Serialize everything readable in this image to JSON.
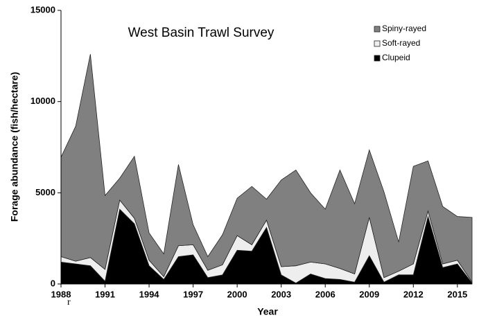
{
  "chart_data": {
    "type": "stacked-area",
    "title": "West Basin Trawl Survey",
    "x_label": "Year",
    "y_label": "Forage abundance  (fish/hectare)",
    "annotation": "r",
    "x": [
      1988,
      1989,
      1990,
      1991,
      1992,
      1993,
      1994,
      1995,
      1996,
      1997,
      1998,
      1999,
      2000,
      2001,
      2002,
      2003,
      2004,
      2005,
      2006,
      2007,
      2008,
      2009,
      2010,
      2011,
      2012,
      2013,
      2014,
      2015,
      2016
    ],
    "xlim": [
      1988,
      2016
    ],
    "xticks": [
      1988,
      1991,
      1994,
      1997,
      2000,
      2003,
      2006,
      2009,
      2012,
      2015
    ],
    "ylim": [
      0,
      15000
    ],
    "yticks": [
      0,
      5000,
      10000,
      15000
    ],
    "legend_position": "top-right",
    "series": [
      {
        "name": "Clupeid",
        "color": "#000000",
        "values": [
          1200,
          1100,
          1000,
          150,
          4100,
          3300,
          1000,
          250,
          1500,
          1600,
          350,
          500,
          1850,
          1800,
          3100,
          500,
          50,
          550,
          300,
          250,
          100,
          1550,
          100,
          500,
          500,
          3700,
          900,
          1100,
          50
        ]
      },
      {
        "name": "Soft-rayed",
        "color": "#eeeeee",
        "values": [
          300,
          150,
          450,
          650,
          500,
          300,
          300,
          150,
          600,
          550,
          400,
          550,
          800,
          350,
          400,
          450,
          950,
          650,
          800,
          600,
          450,
          2100,
          250,
          200,
          600,
          300,
          200,
          200,
          50
        ]
      },
      {
        "name": "Spiny-rayed",
        "color": "#808080",
        "values": [
          5450,
          7400,
          11150,
          4050,
          1200,
          3400,
          1500,
          1250,
          4450,
          1100,
          750,
          1650,
          2050,
          3200,
          1150,
          4750,
          5250,
          3800,
          3000,
          5400,
          3850,
          3700,
          4700,
          1600,
          5350,
          2750,
          3150,
          2400,
          3550
        ]
      }
    ]
  }
}
